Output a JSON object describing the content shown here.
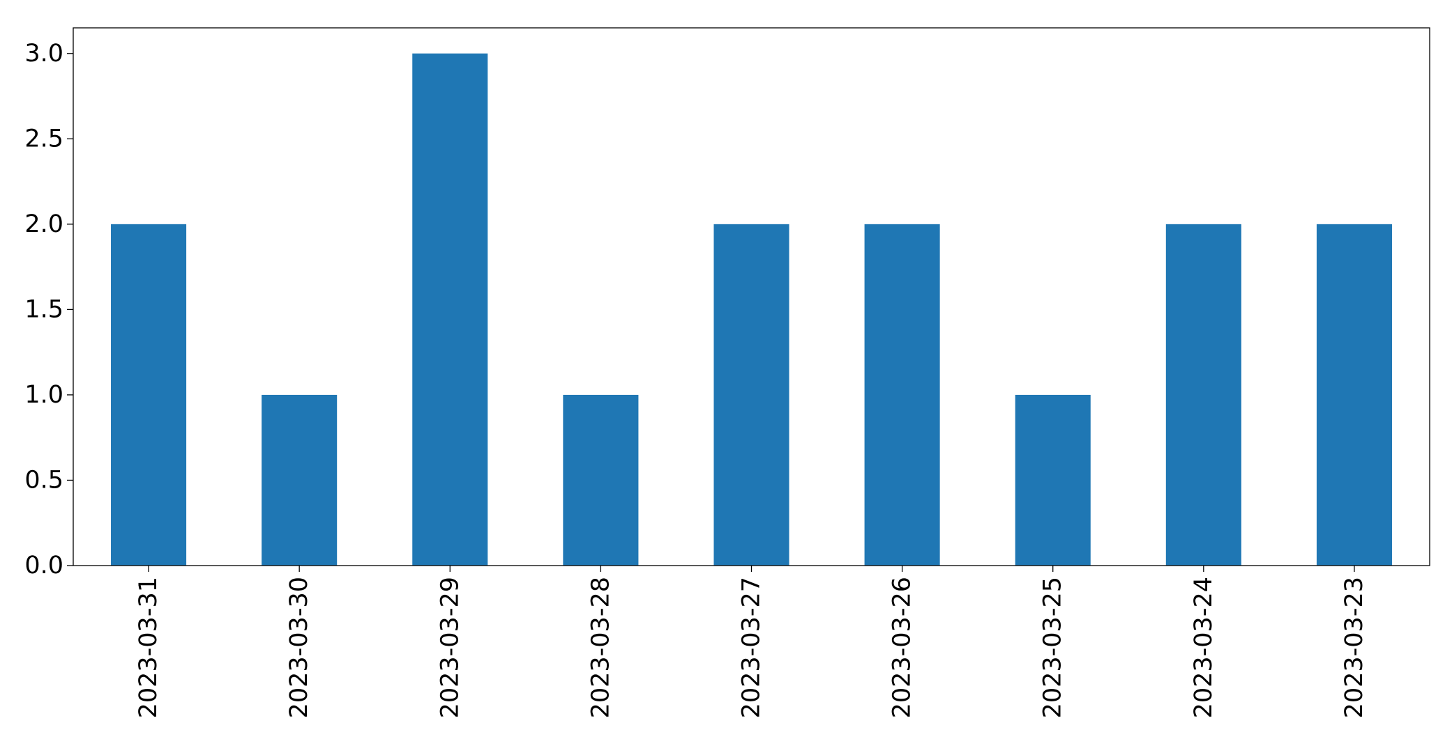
{
  "chart_data": {
    "type": "bar",
    "title": "",
    "xlabel": "",
    "ylabel": "",
    "categories": [
      "2023-03-31",
      "2023-03-30",
      "2023-03-29",
      "2023-03-28",
      "2023-03-27",
      "2023-03-26",
      "2023-03-25",
      "2023-03-24",
      "2023-03-23"
    ],
    "values": [
      2,
      1,
      3,
      1,
      2,
      2,
      1,
      2,
      2
    ],
    "ylim": [
      0,
      3.15
    ],
    "yticks": [
      0.0,
      0.5,
      1.0,
      1.5,
      2.0,
      2.5,
      3.0
    ],
    "ytick_labels": [
      "0.0",
      "0.5",
      "1.0",
      "1.5",
      "2.0",
      "2.5",
      "3.0"
    ],
    "bar_color": "#1f77b4",
    "grid": false,
    "legend": "none"
  }
}
